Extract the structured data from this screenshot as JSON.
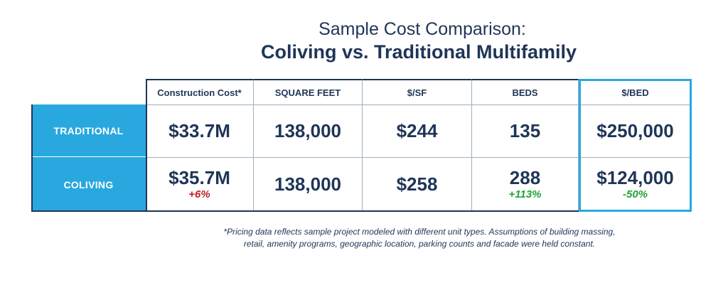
{
  "title": "Sample Cost Comparison:",
  "subtitle": "Coliving vs. Traditional Multifamily",
  "colors": {
    "navy": "#1f3557",
    "accent": "#29a8df",
    "red": "#c0202a",
    "green": "#22a33a"
  },
  "columns": [
    "Construction Cost*",
    "SQUARE FEET",
    "$/SF",
    "BEDS",
    "$/BED"
  ],
  "rows": [
    {
      "label": "TRADITIONAL",
      "cells": [
        {
          "value": "$33.7M",
          "delta": ""
        },
        {
          "value": "138,000",
          "delta": ""
        },
        {
          "value": "$244",
          "delta": ""
        },
        {
          "value": "135",
          "delta": ""
        },
        {
          "value": "$250,000",
          "delta": ""
        }
      ]
    },
    {
      "label": "COLIVING",
      "cells": [
        {
          "value": "$35.7M",
          "delta": "+6%",
          "delta_color": "red"
        },
        {
          "value": "138,000",
          "delta": ""
        },
        {
          "value": "$258",
          "delta": ""
        },
        {
          "value": "288",
          "delta": "+113%",
          "delta_color": "green"
        },
        {
          "value": "$124,000",
          "delta": "-50%",
          "delta_color": "green"
        }
      ]
    }
  ],
  "footnote_line1": "*Pricing data reflects sample project modeled with different unit types. Assumptions of building massing,",
  "footnote_line2": "retail, amenity programs, geographic location, parking counts and facade were held constant."
}
